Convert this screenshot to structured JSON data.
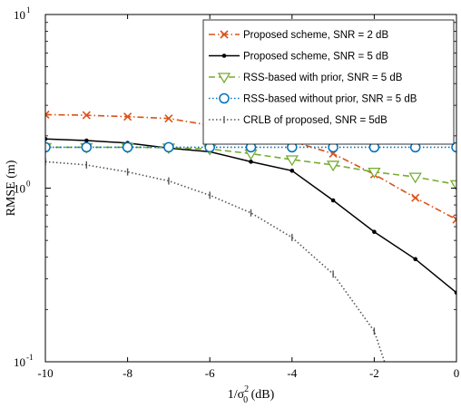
{
  "chart_data": {
    "type": "line",
    "title": "",
    "xlabel": "1/σ",
    "xlabel_sup": "2",
    "xlabel_sub": "0",
    "xlabel_unit": " (dB)",
    "ylabel": "RMSE (m)",
    "x_scale": "linear",
    "y_scale": "log",
    "xlim": [
      -10,
      0
    ],
    "ylim": [
      0.1,
      10
    ],
    "grid": false,
    "legend_position": "top-right",
    "x_ticks": [
      -10,
      -8,
      -6,
      -4,
      -2,
      0
    ],
    "x_tick_labels": [
      "-10",
      "-8",
      "-6",
      "-4",
      "-2",
      "0"
    ],
    "y_ticks": [
      {
        "base": "10",
        "exp": "-1"
      },
      {
        "base": "10",
        "exp": "0"
      },
      {
        "base": "10",
        "exp": "1"
      }
    ],
    "series": [
      {
        "name": "Proposed scheme, SNR = 2 dB",
        "color": "#D95319",
        "line_style": "dashdot",
        "marker": "x",
        "x": [
          -10,
          -9,
          -8,
          -7,
          -6,
          -5,
          -4,
          -3,
          -2,
          -1,
          0
        ],
        "y": [
          2.65,
          2.63,
          2.58,
          2.52,
          2.3,
          2.12,
          1.86,
          1.58,
          1.2,
          0.88,
          0.66
        ]
      },
      {
        "name": "Proposed scheme, SNR = 5 dB",
        "color": "#000000",
        "line_style": "solid",
        "marker": "dot",
        "x": [
          -10,
          -9,
          -8,
          -7,
          -6,
          -5,
          -4,
          -3,
          -2,
          -1,
          0
        ],
        "y": [
          1.92,
          1.88,
          1.82,
          1.7,
          1.62,
          1.42,
          1.26,
          0.85,
          0.56,
          0.39,
          0.25
        ]
      },
      {
        "name": "RSS-based with prior, SNR = 5 dB",
        "color": "#77AC30",
        "line_style": "dashed",
        "marker": "triangle-down",
        "x": [
          -10,
          -9,
          -8,
          -7,
          -6,
          -5,
          -4,
          -3,
          -2,
          -1,
          0
        ],
        "y": [
          1.72,
          1.72,
          1.72,
          1.71,
          1.68,
          1.58,
          1.46,
          1.36,
          1.24,
          1.16,
          1.05
        ]
      },
      {
        "name": "RSS-based without prior, SNR = 5 dB",
        "color": "#0072BD",
        "line_style": "dotted",
        "marker": "circle",
        "x": [
          -10,
          -9,
          -8,
          -7,
          -6,
          -5,
          -4,
          -3,
          -2,
          -1,
          0
        ],
        "y": [
          1.72,
          1.72,
          1.72,
          1.72,
          1.72,
          1.72,
          1.72,
          1.72,
          1.72,
          1.72,
          1.72
        ]
      },
      {
        "name": "CRLB of proposed, SNR = 5dB",
        "color": "#555555",
        "line_style": "dotted",
        "marker": "plus",
        "x": [
          -10,
          -9,
          -8,
          -7,
          -6,
          -5,
          -4,
          -3,
          -2,
          -1.75
        ],
        "y": [
          1.42,
          1.36,
          1.24,
          1.1,
          0.91,
          0.72,
          0.52,
          0.32,
          0.15,
          0.1
        ]
      }
    ]
  }
}
